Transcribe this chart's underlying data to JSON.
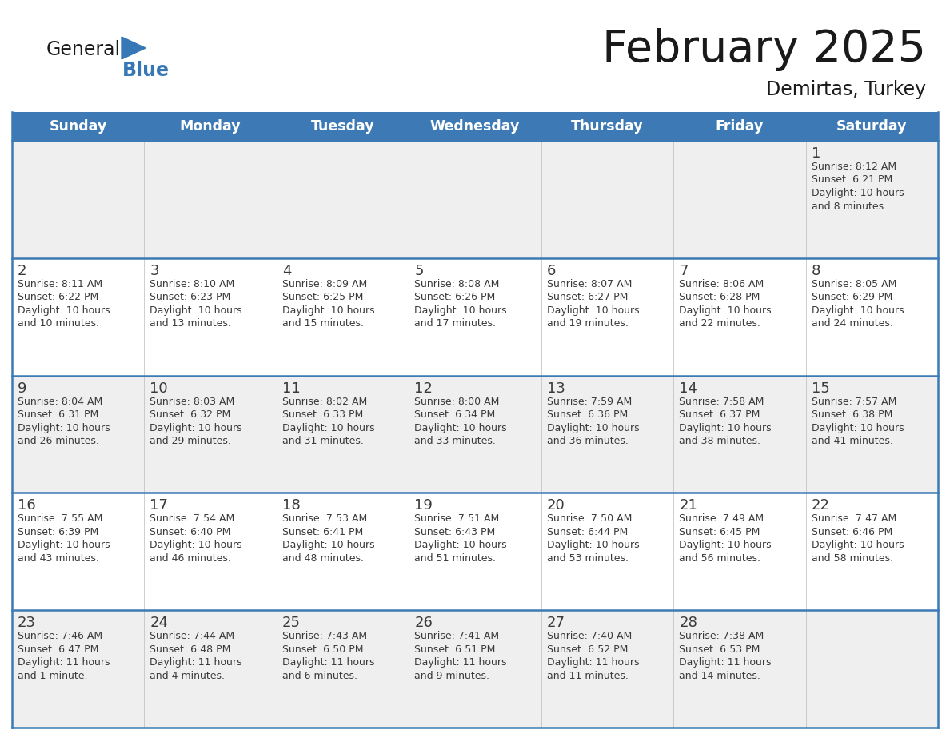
{
  "title": "February 2025",
  "subtitle": "Demirtas, Turkey",
  "header_color": "#3d7ab5",
  "header_text_color": "#ffffff",
  "day_names": [
    "Sunday",
    "Monday",
    "Tuesday",
    "Wednesday",
    "Thursday",
    "Friday",
    "Saturday"
  ],
  "row_colors": [
    "#efefef",
    "#ffffff",
    "#efefef",
    "#ffffff",
    "#efefef"
  ],
  "border_color": "#3d7ab5",
  "text_color": "#3a3a3a",
  "logo_general_color": "#1a1a1a",
  "logo_blue_color": "#3578b5",
  "calendar_data": [
    [
      {
        "day": "",
        "sunrise": "",
        "sunset": "",
        "daylight": ""
      },
      {
        "day": "",
        "sunrise": "",
        "sunset": "",
        "daylight": ""
      },
      {
        "day": "",
        "sunrise": "",
        "sunset": "",
        "daylight": ""
      },
      {
        "day": "",
        "sunrise": "",
        "sunset": "",
        "daylight": ""
      },
      {
        "day": "",
        "sunrise": "",
        "sunset": "",
        "daylight": ""
      },
      {
        "day": "",
        "sunrise": "",
        "sunset": "",
        "daylight": ""
      },
      {
        "day": "1",
        "sunrise": "8:12 AM",
        "sunset": "6:21 PM",
        "daylight": "10 hours\nand 8 minutes."
      }
    ],
    [
      {
        "day": "2",
        "sunrise": "8:11 AM",
        "sunset": "6:22 PM",
        "daylight": "10 hours\nand 10 minutes."
      },
      {
        "day": "3",
        "sunrise": "8:10 AM",
        "sunset": "6:23 PM",
        "daylight": "10 hours\nand 13 minutes."
      },
      {
        "day": "4",
        "sunrise": "8:09 AM",
        "sunset": "6:25 PM",
        "daylight": "10 hours\nand 15 minutes."
      },
      {
        "day": "5",
        "sunrise": "8:08 AM",
        "sunset": "6:26 PM",
        "daylight": "10 hours\nand 17 minutes."
      },
      {
        "day": "6",
        "sunrise": "8:07 AM",
        "sunset": "6:27 PM",
        "daylight": "10 hours\nand 19 minutes."
      },
      {
        "day": "7",
        "sunrise": "8:06 AM",
        "sunset": "6:28 PM",
        "daylight": "10 hours\nand 22 minutes."
      },
      {
        "day": "8",
        "sunrise": "8:05 AM",
        "sunset": "6:29 PM",
        "daylight": "10 hours\nand 24 minutes."
      }
    ],
    [
      {
        "day": "9",
        "sunrise": "8:04 AM",
        "sunset": "6:31 PM",
        "daylight": "10 hours\nand 26 minutes."
      },
      {
        "day": "10",
        "sunrise": "8:03 AM",
        "sunset": "6:32 PM",
        "daylight": "10 hours\nand 29 minutes."
      },
      {
        "day": "11",
        "sunrise": "8:02 AM",
        "sunset": "6:33 PM",
        "daylight": "10 hours\nand 31 minutes."
      },
      {
        "day": "12",
        "sunrise": "8:00 AM",
        "sunset": "6:34 PM",
        "daylight": "10 hours\nand 33 minutes."
      },
      {
        "day": "13",
        "sunrise": "7:59 AM",
        "sunset": "6:36 PM",
        "daylight": "10 hours\nand 36 minutes."
      },
      {
        "day": "14",
        "sunrise": "7:58 AM",
        "sunset": "6:37 PM",
        "daylight": "10 hours\nand 38 minutes."
      },
      {
        "day": "15",
        "sunrise": "7:57 AM",
        "sunset": "6:38 PM",
        "daylight": "10 hours\nand 41 minutes."
      }
    ],
    [
      {
        "day": "16",
        "sunrise": "7:55 AM",
        "sunset": "6:39 PM",
        "daylight": "10 hours\nand 43 minutes."
      },
      {
        "day": "17",
        "sunrise": "7:54 AM",
        "sunset": "6:40 PM",
        "daylight": "10 hours\nand 46 minutes."
      },
      {
        "day": "18",
        "sunrise": "7:53 AM",
        "sunset": "6:41 PM",
        "daylight": "10 hours\nand 48 minutes."
      },
      {
        "day": "19",
        "sunrise": "7:51 AM",
        "sunset": "6:43 PM",
        "daylight": "10 hours\nand 51 minutes."
      },
      {
        "day": "20",
        "sunrise": "7:50 AM",
        "sunset": "6:44 PM",
        "daylight": "10 hours\nand 53 minutes."
      },
      {
        "day": "21",
        "sunrise": "7:49 AM",
        "sunset": "6:45 PM",
        "daylight": "10 hours\nand 56 minutes."
      },
      {
        "day": "22",
        "sunrise": "7:47 AM",
        "sunset": "6:46 PM",
        "daylight": "10 hours\nand 58 minutes."
      }
    ],
    [
      {
        "day": "23",
        "sunrise": "7:46 AM",
        "sunset": "6:47 PM",
        "daylight": "11 hours\nand 1 minute."
      },
      {
        "day": "24",
        "sunrise": "7:44 AM",
        "sunset": "6:48 PM",
        "daylight": "11 hours\nand 4 minutes."
      },
      {
        "day": "25",
        "sunrise": "7:43 AM",
        "sunset": "6:50 PM",
        "daylight": "11 hours\nand 6 minutes."
      },
      {
        "day": "26",
        "sunrise": "7:41 AM",
        "sunset": "6:51 PM",
        "daylight": "11 hours\nand 9 minutes."
      },
      {
        "day": "27",
        "sunrise": "7:40 AM",
        "sunset": "6:52 PM",
        "daylight": "11 hours\nand 11 minutes."
      },
      {
        "day": "28",
        "sunrise": "7:38 AM",
        "sunset": "6:53 PM",
        "daylight": "11 hours\nand 14 minutes."
      },
      {
        "day": "",
        "sunrise": "",
        "sunset": "",
        "daylight": ""
      }
    ]
  ]
}
